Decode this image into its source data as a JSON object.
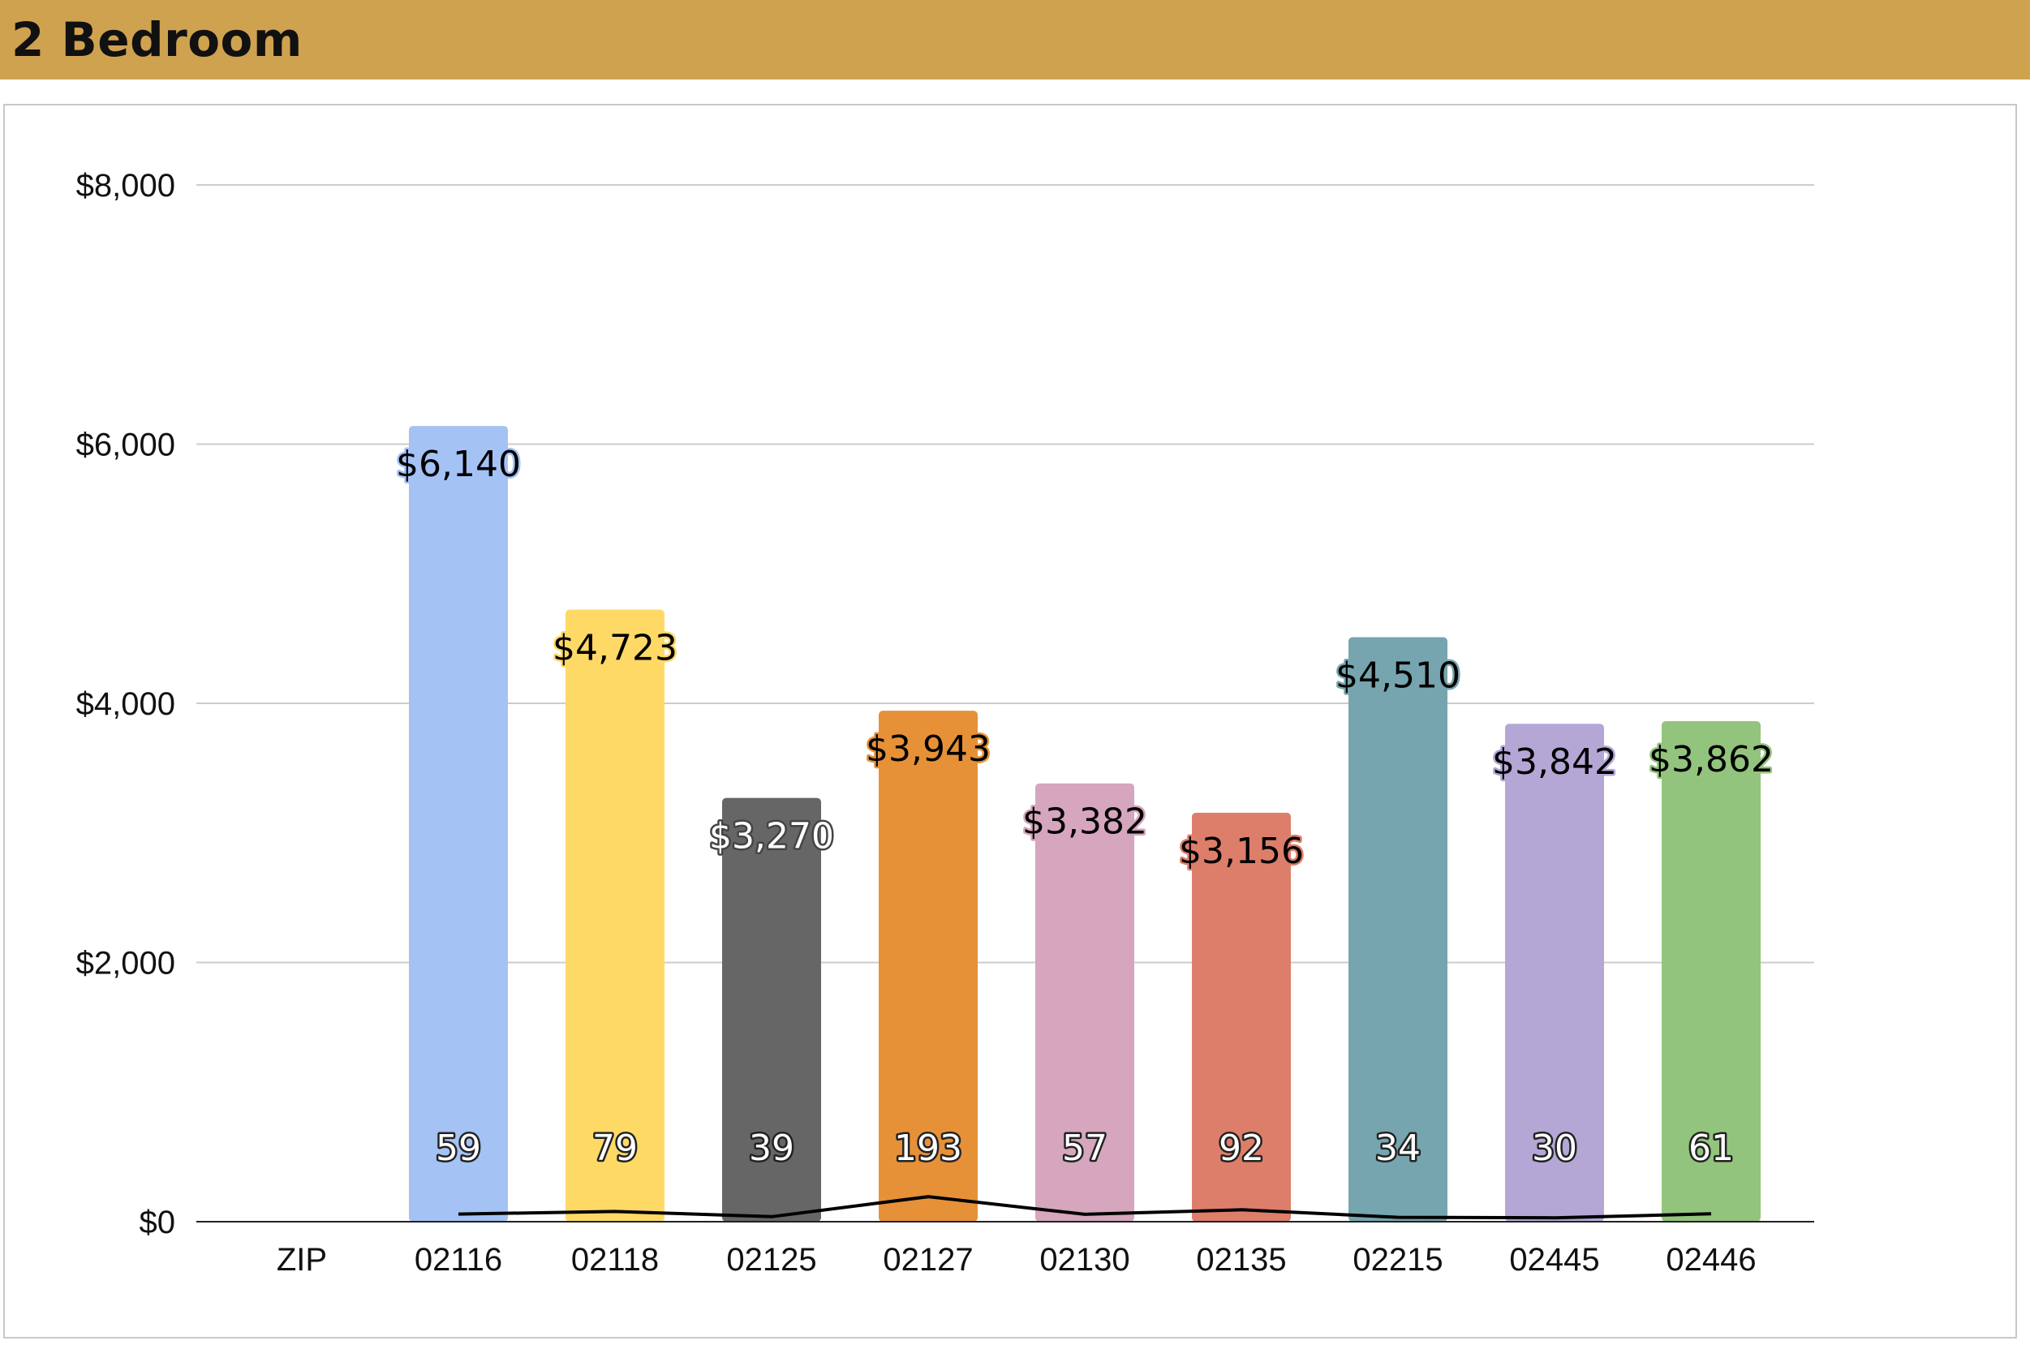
{
  "header": {
    "title": "2 Bedroom"
  },
  "colors": {
    "title_bar": "#cfa250",
    "grid": "#cccccc",
    "axis": "#222222"
  },
  "chart_data": {
    "type": "bar",
    "title": "",
    "xlabel": "",
    "ylabel": "",
    "ylim": [
      0,
      8000
    ],
    "yticks": [
      "$0",
      "$2,000",
      "$4,000",
      "$6,000",
      "$8,000"
    ],
    "ytick_values": [
      0,
      2000,
      4000,
      6000,
      8000
    ],
    "grid": true,
    "legend": "none",
    "categories": [
      "ZIP",
      "02116",
      "02118",
      "02125",
      "02127",
      "02130",
      "02135",
      "02215",
      "02445",
      "02446"
    ],
    "series": [
      {
        "values": [
          0,
          6140,
          4723,
          3270,
          3943,
          3382,
          3156,
          4510,
          3842,
          3862
        ],
        "value_labels": [
          "",
          "$6,140",
          "$4,723",
          "$3,270",
          "$3,943",
          "$3,382",
          "$3,156",
          "$4,510",
          "$3,842",
          "$3,862"
        ],
        "colors": [
          "#ffffff",
          "#a4c2f4",
          "#ffd966",
          "#666666",
          "#e69138",
          "#d5a6bd",
          "#dd7e6b",
          "#76a5af",
          "#b4a7d6",
          "#93c47d"
        ],
        "label_text_colors": [
          "#000000",
          "#000000",
          "#000000",
          "#ffffff",
          "#000000",
          "#000000",
          "#000000",
          "#000000",
          "#000000",
          "#000000"
        ]
      },
      {
        "type": "line",
        "values": [
          0,
          59,
          79,
          39,
          193,
          57,
          92,
          34,
          30,
          61
        ],
        "value_labels": [
          "",
          "59",
          "79",
          "39",
          "193",
          "57",
          "92",
          "34",
          "30",
          "61"
        ],
        "color": "#000000"
      }
    ]
  }
}
